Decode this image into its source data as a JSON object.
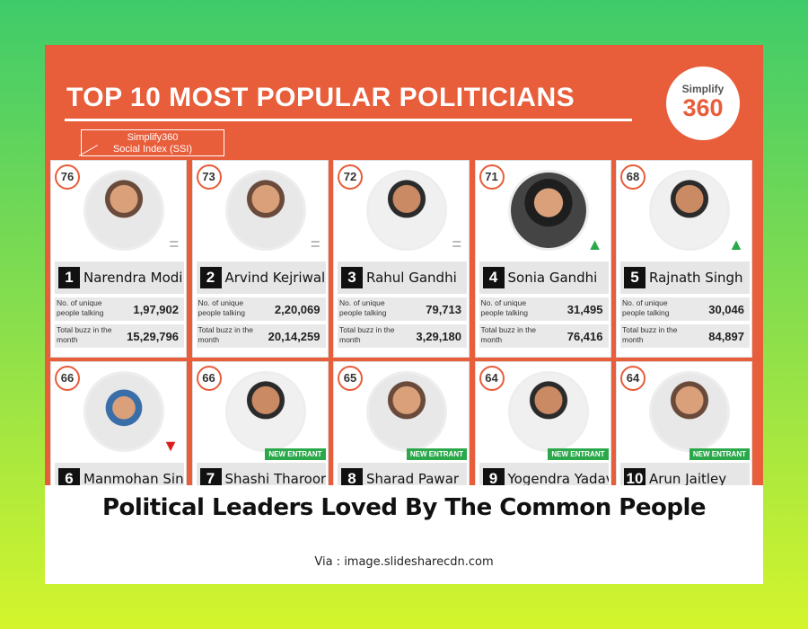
{
  "infographic": {
    "title": "TOP 10 MOST POPULAR POLITICIANS",
    "logo_top": "Simplify",
    "logo_bottom": "360",
    "ssi_line1": "Simplify360",
    "ssi_line2": "Social Index (SSI)",
    "stat_label_unique": "No. of unique people talking",
    "stat_label_buzz": "Total buzz in the month",
    "new_entrant_label": "NEW ENTRANT",
    "politicians": [
      {
        "score": "76",
        "rank": "1",
        "name": "Narendra Modi",
        "unique": "1,97,902",
        "buzz": "15,29,796",
        "trend": "same"
      },
      {
        "score": "73",
        "rank": "2",
        "name": "Arvind Kejriwal",
        "unique": "2,20,069",
        "buzz": "20,14,259",
        "trend": "same"
      },
      {
        "score": "72",
        "rank": "3",
        "name": "Rahul Gandhi",
        "unique": "79,713",
        "buzz": "3,29,180",
        "trend": "same"
      },
      {
        "score": "71",
        "rank": "4",
        "name": "Sonia Gandhi",
        "unique": "31,495",
        "buzz": "76,416",
        "trend": "up"
      },
      {
        "score": "68",
        "rank": "5",
        "name": "Rajnath Singh",
        "unique": "30,046",
        "buzz": "84,897",
        "trend": "up"
      },
      {
        "score": "66",
        "rank": "6",
        "name": "Manmohan Singh",
        "trend": "down"
      },
      {
        "score": "66",
        "rank": "7",
        "name": "Shashi Tharoor",
        "trend": "new"
      },
      {
        "score": "65",
        "rank": "8",
        "name": "Sharad Pawar",
        "trend": "new"
      },
      {
        "score": "64",
        "rank": "9",
        "name": "Yogendra Yadav",
        "trend": "new"
      },
      {
        "score": "64",
        "rank": "10",
        "name": "Arun Jaitley",
        "trend": "new"
      }
    ]
  },
  "caption": "Political Leaders Loved By The Common People",
  "via": "Via : image.slidesharecdn.com"
}
